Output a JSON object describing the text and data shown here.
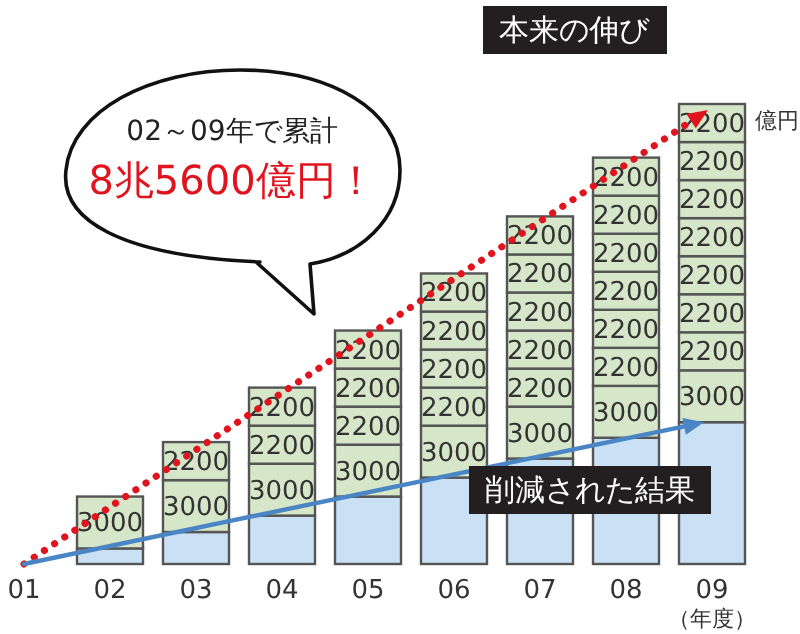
{
  "chart_data": {
    "type": "bar",
    "stacked": true,
    "categories": [
      "01",
      "02",
      "03",
      "04",
      "05",
      "06",
      "07",
      "08",
      "09"
    ],
    "xlabel": "（年度）",
    "ylabel": "億円",
    "tick_labels": "x",
    "series": [
      {
        "color": "#c9e0f5",
        "values": [
          null,
          900,
          1850,
          2800,
          3900,
          5000,
          6100,
          7300,
          8200
        ]
      },
      {
        "color": "#d6e6c8",
        "values": [
          null,
          3000,
          3000,
          3000,
          3000,
          3000,
          3000,
          3000,
          3000
        ],
        "value_labels": [
          null,
          "3000",
          "3000",
          "3000",
          "3000",
          "3000",
          "3000",
          "3000",
          "3000"
        ]
      },
      {
        "color": "#d6e6c8",
        "values": [
          null,
          null,
          2200,
          2200,
          2200,
          2200,
          2200,
          2200,
          2200
        ],
        "value_labels": [
          null,
          null,
          "2200",
          "2200",
          "2200",
          "2200",
          "2200",
          "2200",
          "2200"
        ]
      },
      {
        "color": "#d6e6c8",
        "values": [
          null,
          null,
          null,
          2200,
          2200,
          2200,
          2200,
          2200,
          2200
        ],
        "value_labels": [
          null,
          null,
          null,
          "2200",
          "2200",
          "2200",
          "2200",
          "2200",
          "2200"
        ]
      },
      {
        "color": "#d6e6c8",
        "values": [
          null,
          null,
          null,
          null,
          2200,
          2200,
          2200,
          2200,
          2200
        ],
        "value_labels": [
          null,
          null,
          null,
          null,
          "2200",
          "2200",
          "2200",
          "2200",
          "2200"
        ]
      },
      {
        "color": "#d6e6c8",
        "values": [
          null,
          null,
          null,
          null,
          null,
          2200,
          2200,
          2200,
          2200
        ],
        "value_labels": [
          null,
          null,
          null,
          null,
          null,
          "2200",
          "2200",
          "2200",
          "2200"
        ]
      },
      {
        "color": "#d6e6c8",
        "values": [
          null,
          null,
          null,
          null,
          null,
          null,
          2200,
          2200,
          2200
        ],
        "value_labels": [
          null,
          null,
          null,
          null,
          null,
          null,
          "2200",
          "2200",
          "2200"
        ]
      },
      {
        "color": "#d6e6c8",
        "values": [
          null,
          null,
          null,
          null,
          null,
          null,
          null,
          2200,
          2200
        ],
        "value_labels": [
          null,
          null,
          null,
          null,
          null,
          null,
          null,
          "2200",
          "2200"
        ]
      },
      {
        "color": "#d6e6c8",
        "values": [
          null,
          null,
          null,
          null,
          null,
          null,
          null,
          null,
          2200
        ],
        "value_labels": [
          null,
          null,
          null,
          null,
          null,
          null,
          null,
          null,
          "2200"
        ]
      }
    ],
    "annotations": [
      "02～09年で累計",
      "8兆5600億円！",
      "本来の伸び",
      "削減された結果"
    ]
  }
}
